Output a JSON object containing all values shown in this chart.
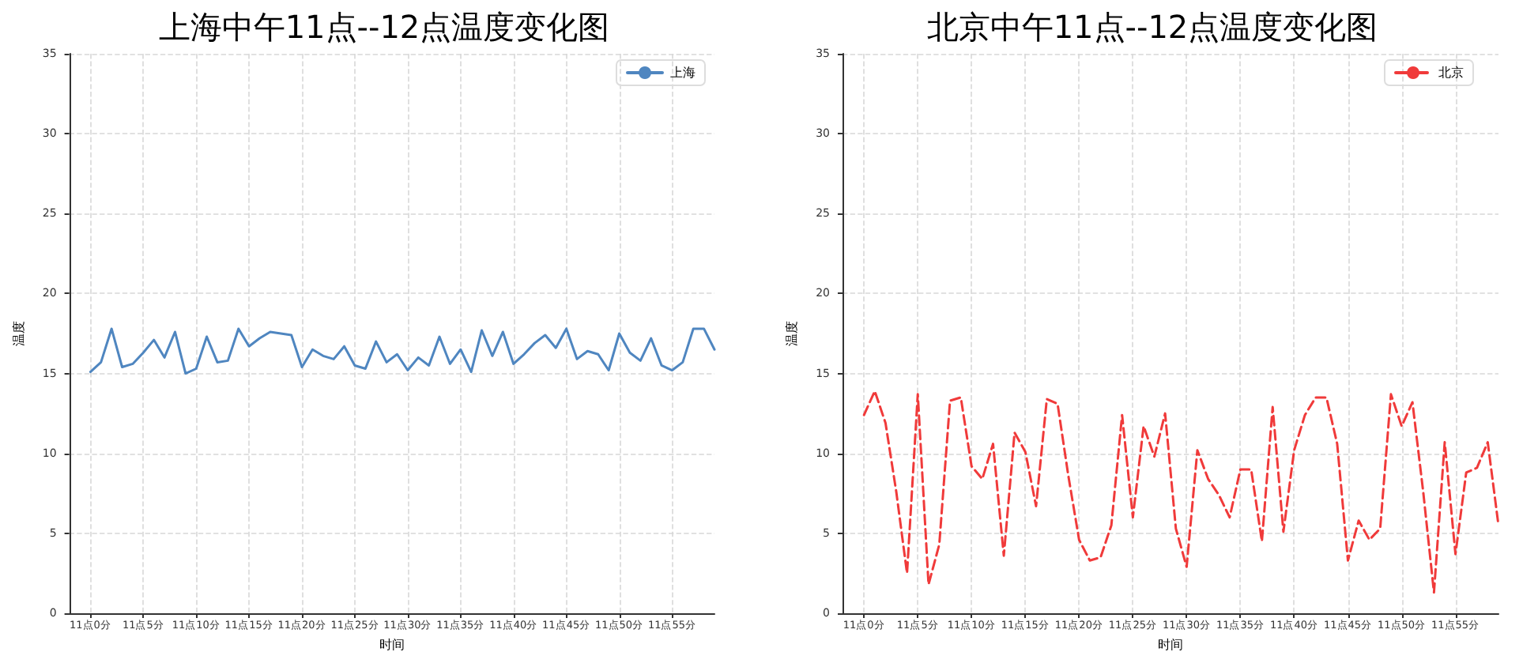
{
  "chart_data": [
    {
      "type": "line",
      "title": "上海中午11点--12点温度变化图",
      "xlabel": "时间",
      "ylabel": "温度",
      "categories": [
        "11点0分",
        null,
        null,
        null,
        null,
        "11点5分",
        null,
        null,
        null,
        null,
        "11点10分",
        null,
        null,
        null,
        null,
        "11点15分",
        null,
        null,
        null,
        null,
        "11点20分",
        null,
        null,
        null,
        null,
        "11点25分",
        null,
        null,
        null,
        null,
        "11点30分",
        null,
        null,
        null,
        null,
        "11点35分",
        null,
        null,
        null,
        null,
        "11点40分",
        null,
        null,
        null,
        null,
        "11点45分",
        null,
        null,
        null,
        null,
        "11点50分",
        null,
        null,
        null,
        null,
        "11点55分",
        null,
        null,
        null,
        null
      ],
      "series": [
        {
          "name": "上海",
          "color": "#4f86c0",
          "line_style": "solid",
          "values": [
            15.1,
            15.7,
            17.8,
            15.4,
            15.6,
            16.3,
            17.1,
            16.0,
            17.6,
            15.0,
            15.3,
            17.3,
            15.7,
            15.8,
            17.8,
            16.7,
            17.2,
            17.6,
            17.5,
            17.4,
            15.4,
            16.5,
            16.1,
            15.9,
            16.7,
            15.5,
            15.3,
            17.0,
            15.7,
            16.2,
            15.2,
            16.0,
            15.5,
            17.3,
            15.6,
            16.5,
            15.1,
            17.7,
            16.1,
            17.6,
            15.6,
            16.2,
            16.9,
            17.4,
            16.6,
            17.8,
            15.9,
            16.4,
            16.2,
            15.2,
            17.5,
            16.3,
            15.8,
            17.2,
            15.5,
            15.2,
            15.7,
            17.8,
            17.8,
            16.5
          ]
        }
      ],
      "ylim": [
        0,
        35
      ],
      "yticks": [
        0,
        5,
        10,
        15,
        20,
        25,
        30,
        35
      ],
      "grid": true,
      "legend": "top right",
      "marker": "none"
    },
    {
      "type": "line",
      "title": "北京中午11点--12点温度变化图",
      "xlabel": "时间",
      "ylabel": "温度",
      "categories": [
        "11点0分",
        null,
        null,
        null,
        null,
        "11点5分",
        null,
        null,
        null,
        null,
        "11点10分",
        null,
        null,
        null,
        null,
        "11点15分",
        null,
        null,
        null,
        null,
        "11点20分",
        null,
        null,
        null,
        null,
        "11点25分",
        null,
        null,
        null,
        null,
        "11点30分",
        null,
        null,
        null,
        null,
        "11点35分",
        null,
        null,
        null,
        null,
        "11点40分",
        null,
        null,
        null,
        null,
        "11点45分",
        null,
        null,
        null,
        null,
        "11点50分",
        null,
        null,
        null,
        null,
        "11点55分",
        null,
        null,
        null,
        null
      ],
      "series": [
        {
          "name": "北京",
          "color": "#f03a3a",
          "line_style": "dashed",
          "values": [
            12.4,
            13.9,
            11.9,
            7.6,
            2.5,
            13.7,
            1.8,
            4.3,
            13.3,
            13.5,
            9.2,
            8.4,
            10.6,
            3.6,
            11.3,
            10.1,
            6.7,
            13.4,
            13.1,
            8.6,
            4.6,
            3.3,
            3.5,
            5.5,
            12.4,
            6.0,
            11.7,
            9.8,
            12.5,
            5.3,
            2.9,
            10.2,
            8.4,
            7.4,
            6.0,
            9.0,
            9.0,
            4.5,
            12.9,
            5.1,
            10.2,
            12.4,
            13.5,
            13.5,
            10.6,
            3.3,
            5.8,
            4.6,
            5.3,
            13.7,
            11.7,
            13.2,
            7.6,
            1.3,
            10.7,
            3.7,
            8.8,
            9.1,
            10.7,
            5.5
          ]
        }
      ],
      "ylim": [
        0,
        35
      ],
      "yticks": [
        0,
        5,
        10,
        15,
        20,
        25,
        30,
        35
      ],
      "grid": true,
      "legend": "top right",
      "marker": "none"
    }
  ]
}
